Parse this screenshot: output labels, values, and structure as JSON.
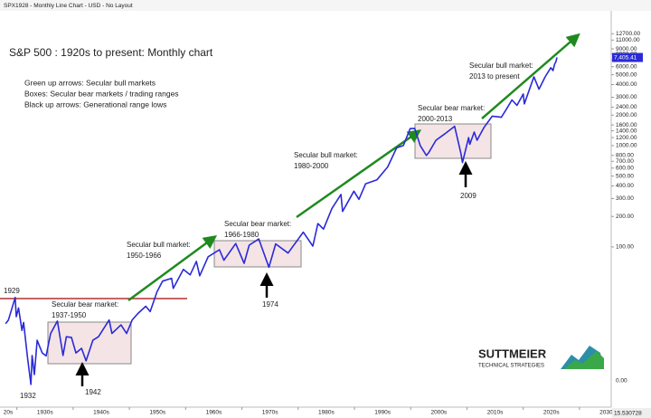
{
  "header": "SPX1928 - Monthly Line Chart - USD - No Layout",
  "chart_data": {
    "type": "line",
    "title": "S&P 500 : 1920s to present: Monthly chart",
    "notes": [
      "Green up arrows: Secular bull markets",
      "Boxes: Secular bear markets / trading ranges",
      "Black up arrows: Generational range lows"
    ],
    "log_y": true,
    "grid": false,
    "xlim": [
      1927,
      2035
    ],
    "ylim": [
      2.52,
      20500
    ],
    "xticks": [
      {
        "value": 1920,
        "label": "20s"
      },
      {
        "value": 1930,
        "label": "1930s"
      },
      {
        "value": 1940,
        "label": "1940s"
      },
      {
        "value": 1950,
        "label": "1950s"
      },
      {
        "value": 1960,
        "label": "1960s"
      },
      {
        "value": 1970,
        "label": "1970s"
      },
      {
        "value": 1980,
        "label": "1980s"
      },
      {
        "value": 1990,
        "label": "1990s"
      },
      {
        "value": 2000,
        "label": "2000s"
      },
      {
        "value": 2010,
        "label": "2010s"
      },
      {
        "value": 2020,
        "label": "2020s"
      },
      {
        "value": 2030,
        "label": "2030s"
      }
    ],
    "yticks": [
      {
        "value": 12700,
        "label": "12700.00"
      },
      {
        "value": 11000,
        "label": "11000.00"
      },
      {
        "value": 9000,
        "label": "9000.00"
      },
      {
        "value": 8000,
        "label": "8000.00"
      },
      {
        "value": 7000,
        "label": "7000.00"
      },
      {
        "value": 6000,
        "label": "6000.00"
      },
      {
        "value": 5000,
        "label": "5000.00"
      },
      {
        "value": 4000,
        "label": "4000.00"
      },
      {
        "value": 3000,
        "label": "3000.00"
      },
      {
        "value": 2400,
        "label": "2400.00"
      },
      {
        "value": 2000,
        "label": "2000.00"
      },
      {
        "value": 1600,
        "label": "1600.00"
      },
      {
        "value": 1400,
        "label": "1400.00"
      },
      {
        "value": 1200,
        "label": "1200.00"
      },
      {
        "value": 1000,
        "label": "1000.00"
      },
      {
        "value": 800,
        "label": "800.00"
      },
      {
        "value": 700,
        "label": "700.00"
      },
      {
        "value": 600,
        "label": "600.00"
      },
      {
        "value": 500,
        "label": "500.00"
      },
      {
        "value": 400,
        "label": "400.00"
      },
      {
        "value": 300,
        "label": "300.00"
      },
      {
        "value": 200,
        "label": "200.00"
      },
      {
        "value": 100,
        "label": "100.00"
      }
    ],
    "axis_bottom_label": "0.00",
    "corner_label": "15.530728",
    "last_price": {
      "value": 7405.41,
      "label": "7,405.41"
    },
    "series": [
      {
        "name": "SPX",
        "color": "#2a2ad8",
        "x": [
          1928.0,
          1928.5,
          1929.7,
          1929.9,
          1930.3,
          1930.9,
          1931.2,
          1931.9,
          1932.5,
          1932.7,
          1933.1,
          1933.6,
          1934.5,
          1935.2,
          1936.0,
          1937.2,
          1938.2,
          1938.8,
          1939.7,
          1940.5,
          1941.5,
          1942.3,
          1943.5,
          1944.5,
          1946.4,
          1946.9,
          1948.5,
          1949.5,
          1950.5,
          1951.5,
          1952.9,
          1953.7,
          1954.9,
          1955.9,
          1957.5,
          1957.8,
          1959.6,
          1960.8,
          1961.9,
          1962.5,
          1964.0,
          1966.0,
          1966.8,
          1968.9,
          1970.4,
          1971.3,
          1973.0,
          1974.8,
          1976.0,
          1978.2,
          1980.9,
          1982.6,
          1983.5,
          1984.5,
          1986.0,
          1987.6,
          1987.9,
          1989.9,
          1990.8,
          1992.0,
          1994.0,
          1995.9,
          1997.5,
          1998.7,
          1999.9,
          2000.7,
          2001.7,
          2002.8,
          2003.2,
          2004.5,
          2006.0,
          2007.8,
          2008.9,
          2009.2,
          2010.3,
          2010.5,
          2011.3,
          2011.8,
          2013.0,
          2014.5,
          2015.7,
          2016.1,
          2017.0,
          2018.0,
          2018.9,
          2020.0,
          2020.2,
          2021.9,
          2022.8,
          2023.9,
          2024.9,
          2025.3,
          2025.6,
          2025.8,
          2026.0
        ],
        "values": [
          17.5,
          19,
          31.7,
          20.5,
          25,
          15,
          18,
          8,
          4.4,
          8.5,
          5.5,
          12,
          9,
          8.4,
          14,
          18.6,
          8.5,
          13,
          12.8,
          9,
          10,
          7.5,
          12,
          13,
          19,
          14,
          17,
          14,
          19,
          22,
          26,
          23,
          36,
          46,
          49,
          39,
          60,
          53,
          72,
          52,
          80,
          94,
          74,
          108,
          69,
          104,
          120,
          63,
          107,
          87,
          140,
          102,
          170,
          150,
          240,
          330,
          224,
          355,
          295,
          420,
          460,
          615,
          950,
          1000,
          1470,
          1480,
          1000,
          800,
          850,
          1130,
          1300,
          1550,
          850,
          680,
          1200,
          1030,
          1360,
          1130,
          1500,
          1950,
          1920,
          1900,
          2280,
          2820,
          2500,
          3230,
          2580,
          4770,
          3600,
          4760,
          5880,
          5500,
          6400,
          6700,
          7405.41
        ]
      }
    ],
    "annotations": [
      {
        "lines": [
          "1929"
        ]
      },
      {
        "lines": [
          "1932"
        ]
      },
      {
        "lines": [
          "1942"
        ]
      },
      {
        "lines": [
          "1974"
        ]
      },
      {
        "lines": [
          "2009"
        ]
      },
      {
        "lines": [
          "Secular bear market:",
          "1937-1950"
        ]
      },
      {
        "lines": [
          "Secular bull market:",
          "1950-1966"
        ]
      },
      {
        "lines": [
          "Secular bear market:",
          "1966-1980"
        ]
      },
      {
        "lines": [
          "Secular bull market:",
          "1980-2000"
        ]
      },
      {
        "lines": [
          "Secular bear market:",
          "2000-2013"
        ]
      },
      {
        "lines": [
          "Secular bull market:",
          "2013 to present"
        ]
      }
    ],
    "logo": [
      "SUTTMEIER",
      "TECHNICAL STRATEGIES"
    ]
  }
}
